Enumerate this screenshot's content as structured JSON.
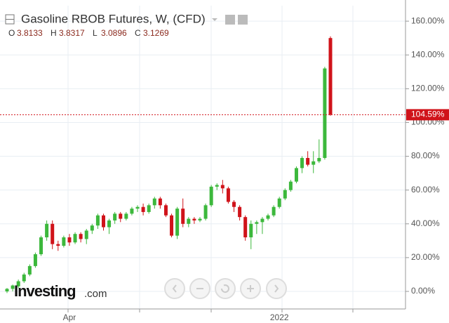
{
  "chart_data": {
    "type": "candlestick",
    "title": "Gasoline RBOB Futures, W, (CFD)",
    "ohlc_legend": [
      {
        "key": "O",
        "value": 3.8133
      },
      {
        "key": "H",
        "value": 3.8317
      },
      {
        "key": "L",
        "value": 3.0896
      },
      {
        "key": "C",
        "value": 3.1269
      }
    ],
    "categories": [
      null,
      null,
      null,
      null,
      null,
      null,
      null,
      null,
      null,
      null,
      null,
      "Apr",
      null,
      null,
      null,
      null,
      null,
      null,
      null,
      null,
      null,
      null,
      null,
      null,
      null,
      null,
      null,
      null,
      null,
      null,
      null,
      null,
      null,
      null,
      null,
      null,
      null,
      null,
      null,
      null,
      null,
      null,
      null,
      null,
      null,
      null,
      null,
      null,
      "2022",
      null,
      null,
      null,
      null,
      null,
      null,
      null,
      null,
      null
    ],
    "open": [
      0,
      1.5,
      3,
      6,
      10,
      15,
      22,
      32,
      40,
      28,
      27,
      32,
      29,
      34,
      31,
      36,
      39,
      45,
      38,
      42,
      46,
      43,
      46,
      49,
      50,
      47,
      51,
      55,
      51,
      45,
      33,
      49,
      40,
      43,
      42,
      43,
      51,
      62,
      63,
      61,
      53,
      50,
      44,
      32,
      40,
      41,
      43,
      45,
      50,
      55,
      60,
      65,
      73,
      79,
      75,
      77,
      79,
      150
    ],
    "high": [
      2,
      4,
      7,
      11,
      16,
      23,
      33,
      42,
      42,
      30,
      33,
      34,
      35,
      35,
      37,
      40,
      46,
      46,
      43,
      47,
      47,
      47,
      50,
      51,
      52,
      52,
      56,
      56,
      52,
      46,
      50,
      55,
      44,
      44,
      44,
      52,
      63,
      64,
      66,
      62,
      54,
      51,
      45,
      42,
      42,
      44,
      46,
      51,
      56,
      61,
      66,
      74,
      80,
      83,
      83,
      90,
      133,
      151
    ],
    "low": [
      -1,
      0,
      2,
      5,
      9,
      14,
      21,
      30,
      25,
      24,
      26,
      27,
      28,
      29,
      28,
      34,
      37,
      36,
      34,
      40,
      41,
      42,
      45,
      47,
      45,
      46,
      49,
      49,
      44,
      32,
      31,
      38,
      38,
      40,
      41,
      42,
      50,
      60,
      58,
      52,
      47,
      42,
      30,
      25,
      34,
      34,
      42,
      44,
      49,
      54,
      59,
      64,
      70,
      74,
      70,
      76,
      78,
      104
    ],
    "close": [
      1.5,
      3.5,
      6,
      10,
      15,
      22,
      32,
      40,
      28,
      27,
      32,
      29,
      34,
      31,
      36,
      39,
      45,
      38,
      42,
      46,
      43,
      46,
      49,
      50,
      47,
      51,
      55,
      51,
      45,
      33,
      49,
      40,
      43,
      42,
      43,
      51,
      62,
      63,
      61,
      53,
      50,
      44,
      32,
      40,
      41,
      43,
      45,
      50,
      55,
      60,
      65,
      73,
      79,
      75,
      77,
      79,
      132,
      104.59
    ],
    "up_color": "#3cb83c",
    "down_color": "#d0131a",
    "last_price": {
      "value": 104.59,
      "label": "104.59%"
    },
    "ylim": [
      -10.4,
      169.2
    ],
    "yticks": [
      {
        "value": 0,
        "label": "0.00%"
      },
      {
        "value": 20,
        "label": "20.00%"
      },
      {
        "value": 40,
        "label": "40.00%"
      },
      {
        "value": 60,
        "label": "60.00%"
      },
      {
        "value": 80,
        "label": "80.00%"
      },
      {
        "value": 100,
        "label": "100.00%"
      },
      {
        "value": 120,
        "label": "120.00%"
      },
      {
        "value": 140,
        "label": "140.00%"
      },
      {
        "value": 160,
        "label": "160.00%"
      }
    ],
    "grid": true,
    "logo": "Investing",
    "logo_suffix": ".com"
  }
}
